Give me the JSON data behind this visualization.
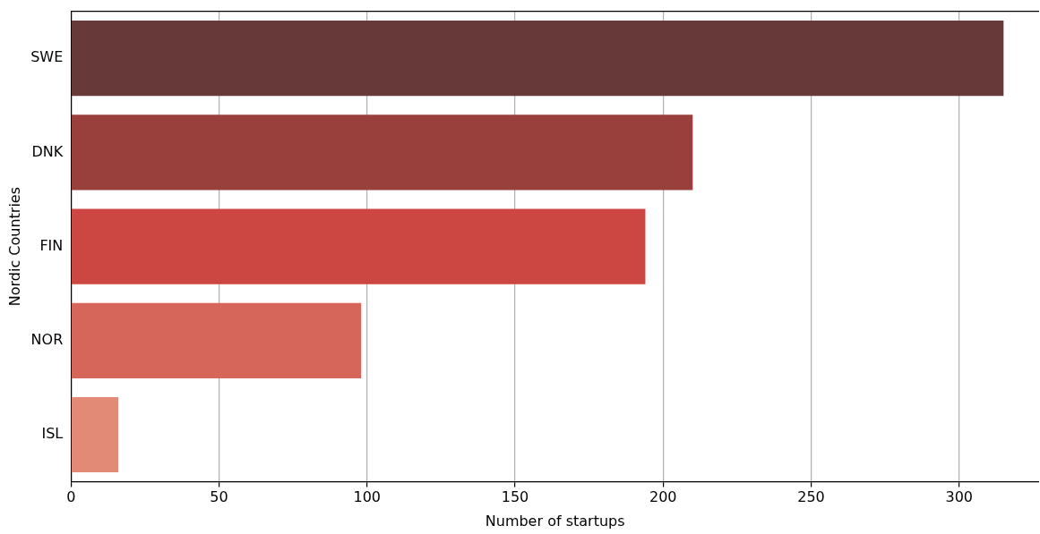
{
  "chart_data": {
    "type": "bar",
    "orientation": "horizontal",
    "xlabel": "Number of startups",
    "ylabel": "Nordic Countries",
    "categories": [
      "SWE",
      "DNK",
      "FIN",
      "NOR",
      "ISL"
    ],
    "values": [
      315,
      210,
      194,
      98,
      16
    ],
    "colors": [
      "#673a39",
      "#993f3c",
      "#cc4741",
      "#d6665a",
      "#e38a77"
    ],
    "xlim": [
      0,
      327
    ],
    "xticks": [
      0,
      50,
      100,
      150,
      200,
      250,
      300
    ],
    "grid": "x",
    "legend": false
  }
}
